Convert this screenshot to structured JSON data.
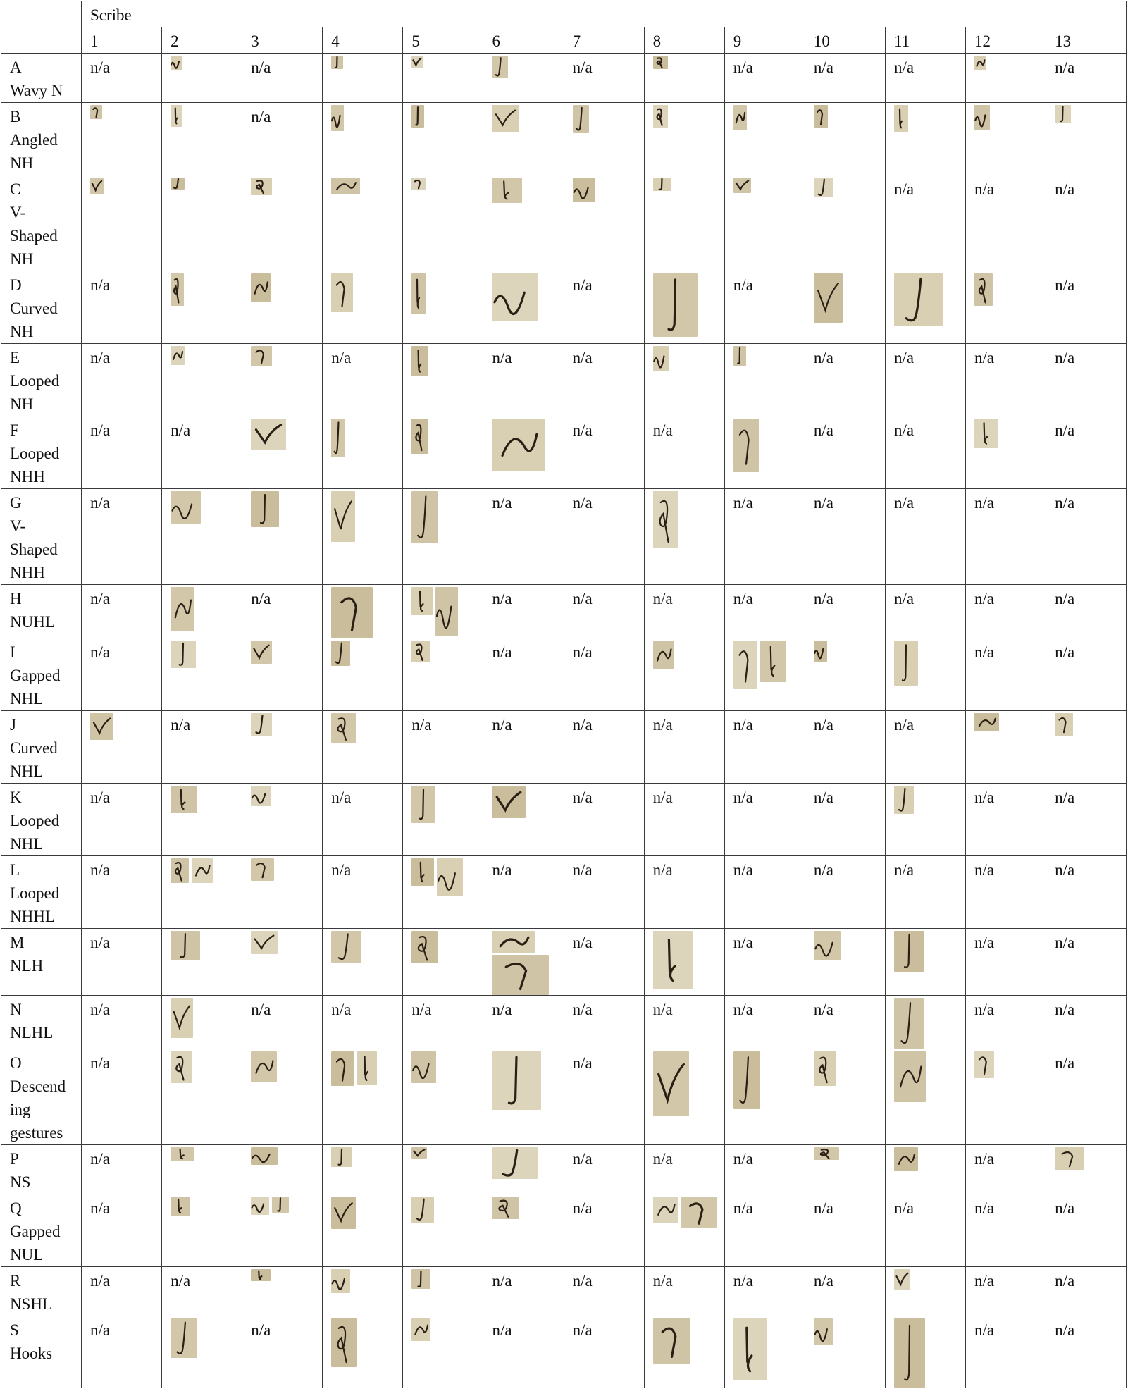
{
  "table": {
    "header_group": "Scribe",
    "scribes": [
      "1",
      "2",
      "3",
      "4",
      "5",
      "6",
      "7",
      "8",
      "9",
      "10",
      "11",
      "12",
      "13"
    ],
    "na_text": "n/a",
    "rows": [
      {
        "letter": "A",
        "name": "Wavy N",
        "cells": [
          "n/a",
          "img",
          "n/a",
          "img",
          "img",
          "img",
          "n/a",
          "img",
          "n/a",
          "n/a",
          "n/a",
          "img",
          "n/a"
        ]
      },
      {
        "letter": "B",
        "name": "Angled\nNH",
        "cells": [
          "img",
          "img",
          "n/a",
          "img",
          "img",
          "img",
          "img",
          "img",
          "img",
          "img",
          "img",
          "img",
          "img"
        ]
      },
      {
        "letter": "C",
        "name": "V-\nShaped\nNH",
        "cells": [
          "img",
          "img",
          "img",
          "img",
          "img",
          "img",
          "img",
          "img",
          "img",
          "img",
          "n/a",
          "n/a",
          "n/a"
        ]
      },
      {
        "letter": "D",
        "name": "Curved\nNH",
        "cells": [
          "n/a",
          "img",
          "img",
          "img",
          "img",
          "img",
          "n/a",
          "img",
          "n/a",
          "img",
          "img",
          "img",
          "n/a"
        ]
      },
      {
        "letter": "E",
        "name": "Looped\nNH",
        "cells": [
          "n/a",
          "img",
          "img",
          "n/a",
          "img",
          "n/a",
          "n/a",
          "img",
          "img",
          "n/a",
          "n/a",
          "n/a",
          "n/a"
        ]
      },
      {
        "letter": "F",
        "name": "Looped\nNHH",
        "cells": [
          "n/a",
          "n/a",
          "img",
          "img",
          "img",
          "img",
          "n/a",
          "n/a",
          "img",
          "n/a",
          "n/a",
          "img",
          "n/a"
        ]
      },
      {
        "letter": "G",
        "name": "V-\nShaped\nNHH",
        "cells": [
          "n/a",
          "img",
          "img",
          "img",
          "img",
          "n/a",
          "n/a",
          "img",
          "n/a",
          "n/a",
          "n/a",
          "n/a",
          "n/a"
        ]
      },
      {
        "letter": "H",
        "name": "NUHL",
        "cells": [
          "n/a",
          "img",
          "n/a",
          "img",
          "img2",
          "n/a",
          "n/a",
          "n/a",
          "n/a",
          "n/a",
          "n/a",
          "n/a",
          "n/a"
        ]
      },
      {
        "letter": "I",
        "name": "Gapped\nNHL",
        "cells": [
          "n/a",
          "img",
          "img",
          "img",
          "img",
          "n/a",
          "n/a",
          "img",
          "img2",
          "img",
          "img",
          "n/a",
          "n/a"
        ]
      },
      {
        "letter": "J",
        "name": "Curved\nNHL",
        "cells": [
          "img",
          "n/a",
          "img",
          "img",
          "n/a",
          "n/a",
          "n/a",
          "n/a",
          "n/a",
          "n/a",
          "n/a",
          "img",
          "img"
        ]
      },
      {
        "letter": "K",
        "name": "Looped\nNHL",
        "cells": [
          "n/a",
          "img",
          "img",
          "n/a",
          "img",
          "img",
          "n/a",
          "n/a",
          "n/a",
          "n/a",
          "img",
          "n/a",
          "n/a"
        ]
      },
      {
        "letter": "L",
        "name": "Looped\nNHHL",
        "cells": [
          "n/a",
          "img2",
          "img",
          "n/a",
          "img2",
          "n/a",
          "n/a",
          "n/a",
          "n/a",
          "n/a",
          "n/a",
          "n/a",
          "n/a"
        ]
      },
      {
        "letter": "M",
        "name": "NLH",
        "cells": [
          "n/a",
          "img",
          "img",
          "img",
          "img",
          "img2",
          "n/a",
          "img",
          "n/a",
          "img",
          "img",
          "n/a",
          "n/a"
        ]
      },
      {
        "letter": "N",
        "name": "NLHL",
        "cells": [
          "n/a",
          "img",
          "n/a",
          "n/a",
          "n/a",
          "n/a",
          "n/a",
          "n/a",
          "n/a",
          "n/a",
          "img",
          "n/a",
          "n/a"
        ]
      },
      {
        "letter": "O",
        "name": "Descend\ning\ngestures",
        "cells": [
          "n/a",
          "img",
          "img",
          "img2",
          "img",
          "img",
          "n/a",
          "img",
          "img",
          "img",
          "img",
          "img",
          "n/a"
        ]
      },
      {
        "letter": "P",
        "name": "NS",
        "cells": [
          "n/a",
          "img",
          "img",
          "img",
          "img",
          "img",
          "n/a",
          "n/a",
          "n/a",
          "img",
          "img",
          "n/a",
          "img"
        ]
      },
      {
        "letter": "Q",
        "name": "Gapped\nNUL",
        "cells": [
          "n/a",
          "img",
          "img2",
          "img",
          "img",
          "img",
          "n/a",
          "img2",
          "n/a",
          "n/a",
          "n/a",
          "n/a",
          "n/a"
        ]
      },
      {
        "letter": "R",
        "name": "NSHL",
        "cells": [
          "n/a",
          "n/a",
          "img",
          "img",
          "img",
          "n/a",
          "n/a",
          "n/a",
          "n/a",
          "n/a",
          "img",
          "n/a",
          "n/a"
        ]
      },
      {
        "letter": "S",
        "name": "Hooks",
        "cells": [
          "n/a",
          "img",
          "n/a",
          "img",
          "img",
          "n/a",
          "n/a",
          "img",
          "img",
          "img",
          "img",
          "n/a",
          "n/a"
        ]
      }
    ]
  },
  "colors": {
    "border": "#3a3a3a",
    "parchment": "#d8cfb3",
    "ink": "#2a1f14"
  }
}
